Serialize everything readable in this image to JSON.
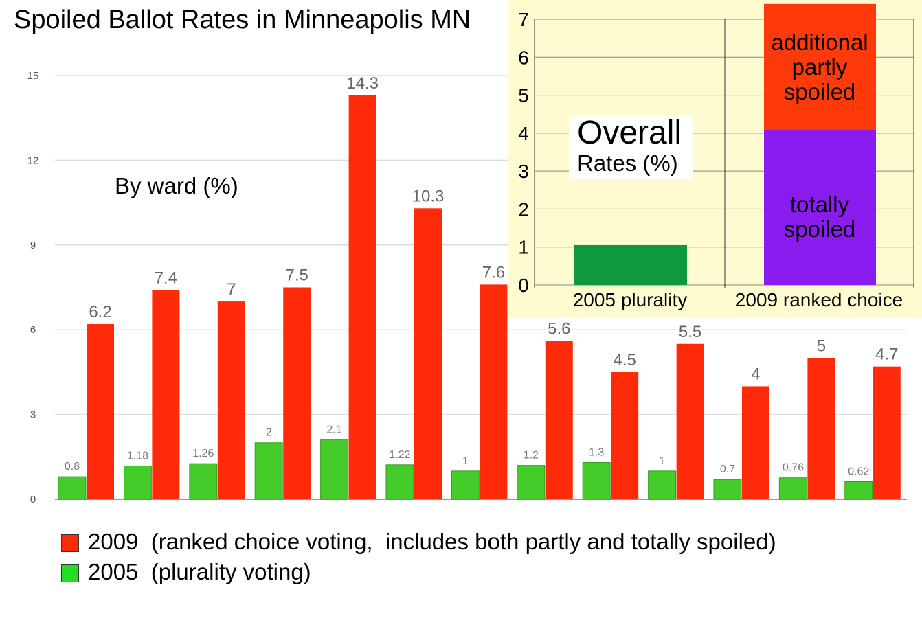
{
  "chart_data": [
    {
      "type": "bar",
      "title": "Spoiled Ballot Rates in Minneapolis MN",
      "annotation": "By ward (%)",
      "ylim": [
        0,
        15
      ],
      "yticks": [
        0,
        3,
        6,
        9,
        12,
        15
      ],
      "grid": true,
      "legend_placement": "bottom-left",
      "series": [
        {
          "name": "2005  (plurality voting)",
          "color": "#44cc2a",
          "values": [
            0.8,
            1.18,
            1.26,
            2,
            2.1,
            1.22,
            1,
            1.2,
            1.3,
            1,
            0.7,
            0.76,
            0.62
          ]
        },
        {
          "name": "2009  (ranked choice voting,  includes both partly and totally spoiled)",
          "color": "#ff2a0a",
          "values": [
            6.2,
            7.4,
            7,
            7.5,
            14.3,
            10.3,
            7.6,
            5.6,
            4.5,
            5.5,
            4,
            5,
            4.7
          ]
        }
      ]
    },
    {
      "type": "bar",
      "stacked": true,
      "title": "Overall",
      "subtitle": "Rates (%)",
      "ylim": [
        0,
        7
      ],
      "yticks": [
        0,
        1,
        2,
        3,
        4,
        5,
        6,
        7
      ],
      "grid": true,
      "categories": [
        "2005 plurality",
        "2009 ranked choice"
      ],
      "background": "#fffbd0",
      "series": [
        {
          "name": "totally spoiled",
          "color": "#8a1cf0",
          "values": [
            null,
            4.1
          ]
        },
        {
          "name": "additional partly spoiled",
          "color": "#ff3a0a",
          "values": [
            null,
            3.3
          ]
        },
        {
          "name": "",
          "color": "#0e9a3c",
          "values": [
            1.05,
            null
          ]
        }
      ]
    }
  ]
}
